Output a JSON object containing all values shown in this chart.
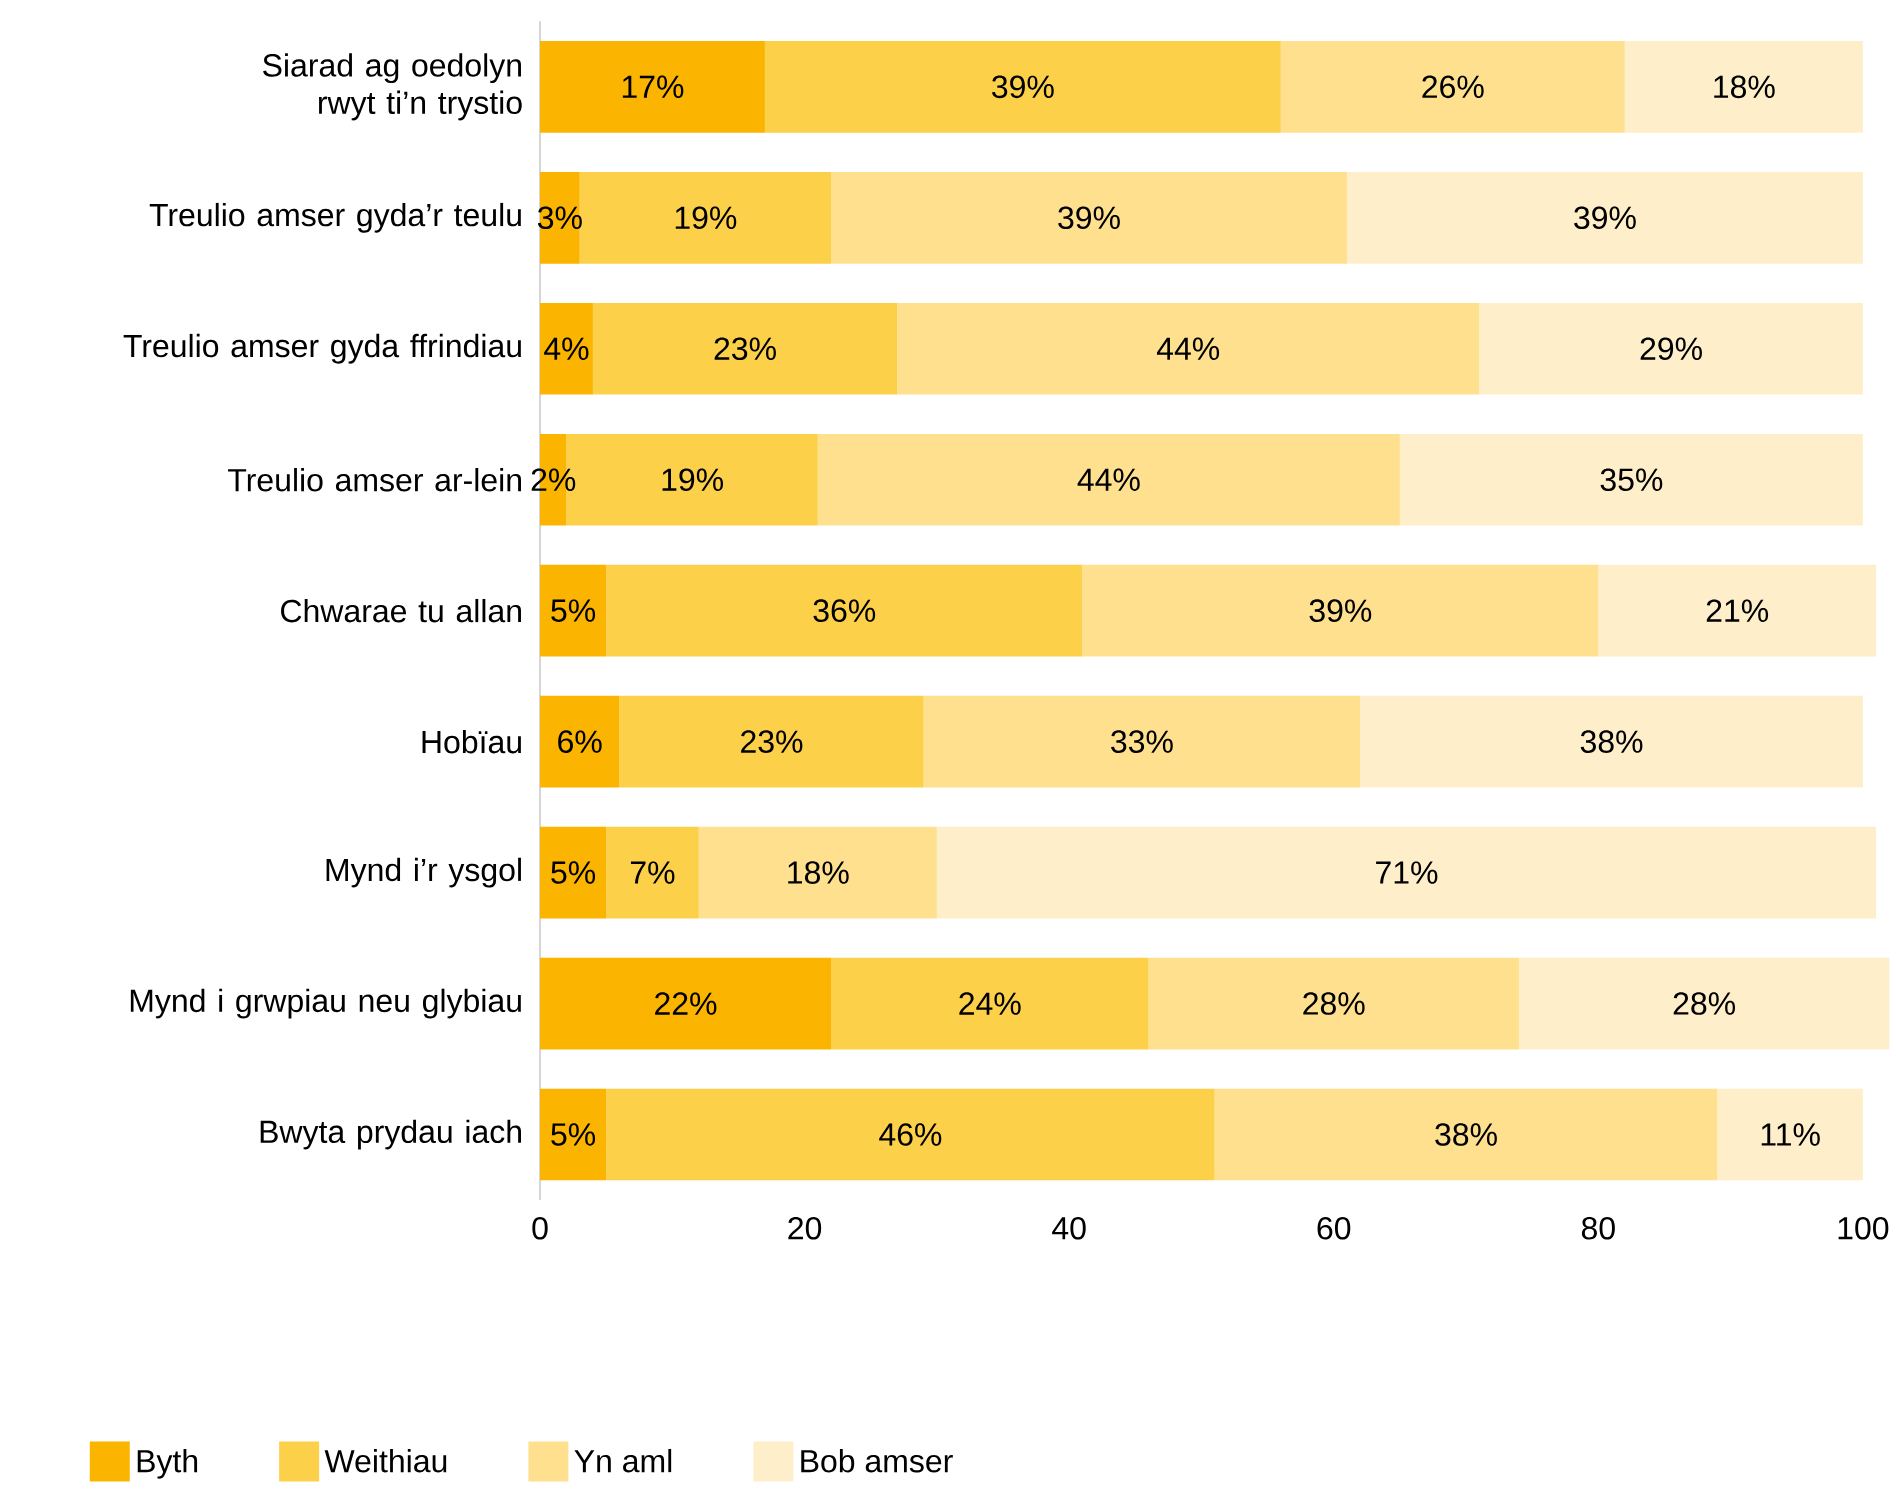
{
  "chart_data": {
    "type": "bar",
    "orientation": "horizontal",
    "stacked": true,
    "categories": [
      "Siarad ag oedolyn rwyt ti’n trystio",
      "Treulio amser gyda’r teulu",
      "Treulio amser gyda ffrindiau",
      "Treulio amser ar-lein",
      "Chwarae tu allan",
      "Hobïau",
      "Mynd i’r ysgol",
      "Mynd i grwpiau neu glybiau",
      "Bwyta prydau iach"
    ],
    "series": [
      {
        "name": "Byth",
        "color": "#fbb400",
        "values": [
          17,
          3,
          4,
          2,
          5,
          6,
          5,
          22,
          5
        ],
        "value_labels": [
          "17%",
          "3%",
          "4%",
          "2%",
          "5%",
          "6%",
          "5%",
          "22%",
          "5%"
        ]
      },
      {
        "name": "Weithiau",
        "color": "#fdd04a",
        "values": [
          39,
          19,
          23,
          19,
          36,
          23,
          7,
          24,
          46
        ],
        "value_labels": [
          "39%",
          "19%",
          "23%",
          "19%",
          "36%",
          "23%",
          "7%",
          "24%",
          "46%"
        ]
      },
      {
        "name": "Yn aml",
        "color": "#fee08f",
        "values": [
          26,
          39,
          44,
          44,
          39,
          33,
          18,
          28,
          38
        ],
        "value_labels": [
          "26%",
          "39%",
          "44%",
          "44%",
          "39%",
          "33%",
          "18%",
          "28%",
          "38%"
        ]
      },
      {
        "name": "Bob amser",
        "color": "#feefca",
        "values": [
          18,
          39,
          29,
          35,
          21,
          38,
          71,
          28,
          11
        ],
        "value_labels": [
          "18%",
          "39%",
          "29%",
          "35%",
          "21%",
          "38%",
          "71%",
          "28%",
          "11%"
        ]
      }
    ],
    "xlim": [
      0,
      102
    ],
    "xticks": [
      0,
      20,
      40,
      60,
      80,
      100
    ],
    "legend": "bottom left",
    "grid": false
  }
}
